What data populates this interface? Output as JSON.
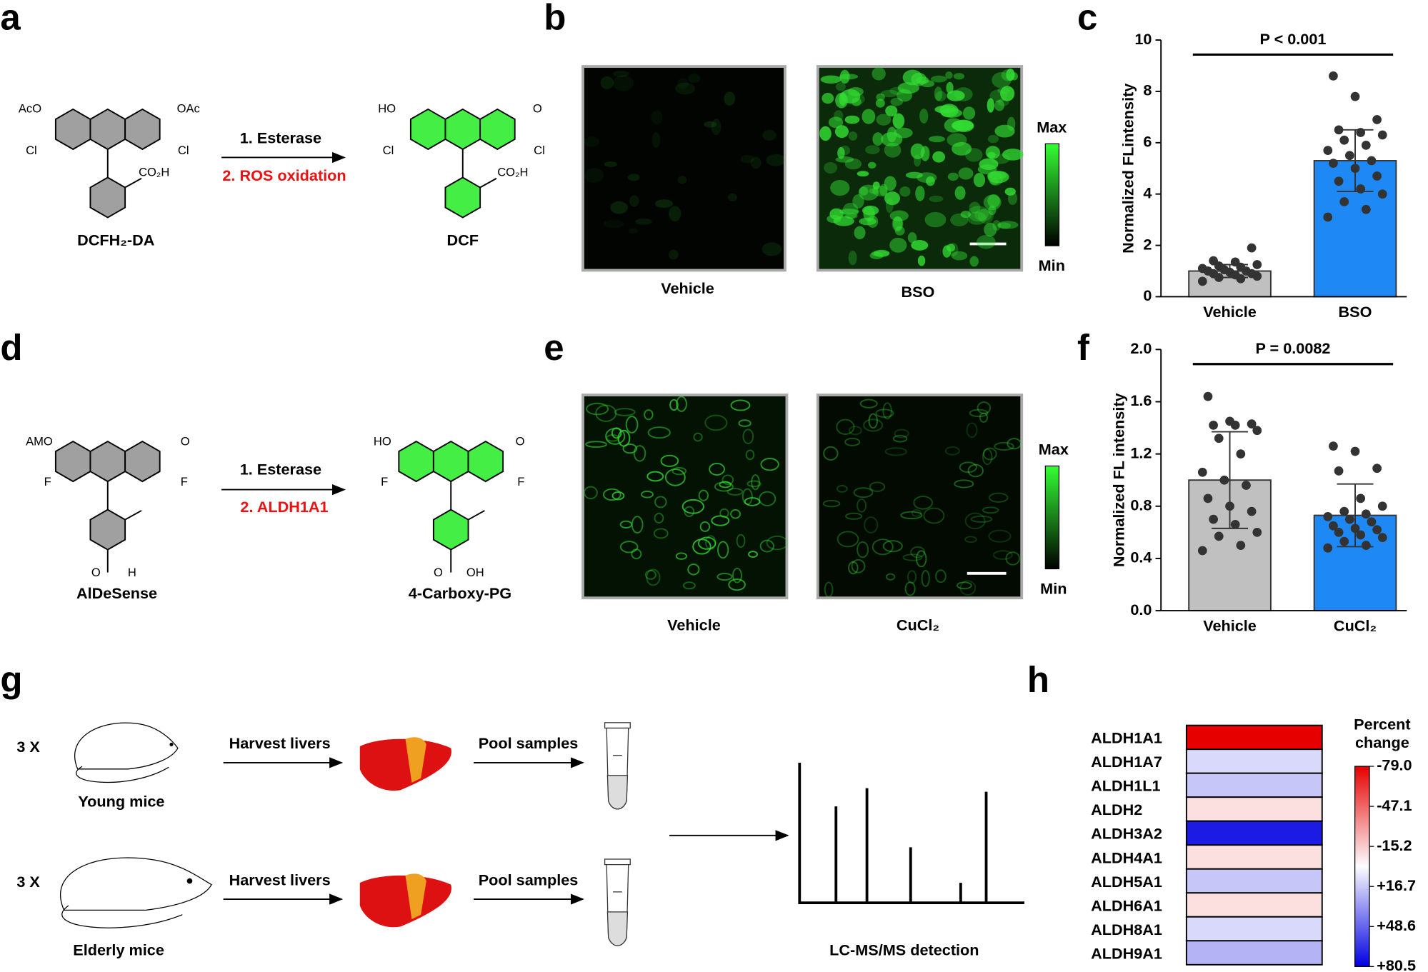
{
  "panel_labels": [
    "a",
    "b",
    "c",
    "d",
    "e",
    "f",
    "g",
    "h"
  ],
  "a": {
    "reactant": {
      "groups": [
        "AcO",
        "OAc",
        "Cl",
        "Cl",
        "CO₂H"
      ],
      "name": "DCFH₂-DA"
    },
    "steps": [
      "1. Esterase",
      "2. ROS oxidation"
    ],
    "product": {
      "groups": [
        "HO",
        "O",
        "Cl",
        "Cl",
        "CO₂H"
      ],
      "name": "DCF"
    }
  },
  "b": {
    "images": [
      "Vehicle",
      "BSO"
    ],
    "scale": [
      "Max",
      "Min"
    ]
  },
  "d": {
    "reactant": {
      "groups": [
        "AMO",
        "O",
        "F",
        "F",
        "O",
        "H"
      ],
      "name": "AlDeSense"
    },
    "steps": [
      "1. Esterase",
      "2. ALDH1A1"
    ],
    "product": {
      "groups": [
        "HO",
        "O",
        "F",
        "F",
        "O",
        "OH"
      ],
      "name": "4-Carboxy-PG"
    }
  },
  "e": {
    "images": [
      "Vehicle",
      "CuCl₂"
    ],
    "scale": [
      "Max",
      "Min"
    ]
  },
  "g": {
    "rows": [
      {
        "count": "3 X",
        "group": "Young mice"
      },
      {
        "count": "3 X",
        "group": "Elderly mice"
      }
    ],
    "steps": [
      "Harvest livers",
      "Pool samples"
    ],
    "detection": "LC-MS/MS detection"
  },
  "chart_data": [
    {
      "type": "bar",
      "title": "P < 0.001",
      "y_label": "Normalized FLintensity",
      "categories": [
        "Vehicle",
        "BSO"
      ],
      "values": [
        1.0,
        5.3
      ],
      "errors": [
        0.25,
        1.2
      ],
      "points": [
        [
          0.6,
          0.7,
          0.75,
          0.8,
          0.85,
          0.9,
          0.9,
          0.95,
          1.0,
          1.0,
          1.05,
          1.1,
          1.15,
          1.2,
          1.25,
          1.35,
          1.4,
          1.9
        ],
        [
          3.1,
          3.4,
          3.7,
          4.0,
          4.2,
          4.5,
          4.7,
          5.0,
          5.2,
          5.3,
          5.5,
          5.7,
          5.9,
          6.1,
          6.3,
          6.4,
          6.5,
          6.9,
          7.8,
          8.6
        ]
      ],
      "colors": [
        "#c0c0c0",
        "#1e88f5"
      ],
      "ylim": [
        0,
        10
      ],
      "yticks": [
        0,
        2,
        4,
        6,
        8,
        10
      ]
    },
    {
      "type": "bar",
      "title": "P = 0.0082",
      "y_label": "Normalized FL intensity",
      "categories": [
        "Vehicle",
        "CuCl₂"
      ],
      "values": [
        1.0,
        0.73
      ],
      "errors": [
        0.37,
        0.24
      ],
      "points": [
        [
          0.46,
          0.5,
          0.57,
          0.6,
          0.66,
          0.7,
          0.76,
          0.8,
          0.86,
          0.96,
          1.0,
          1.06,
          1.2,
          1.32,
          1.38,
          1.42,
          1.42,
          1.43,
          1.45,
          1.64
        ],
        [
          0.48,
          0.5,
          0.53,
          0.56,
          0.58,
          0.6,
          0.62,
          0.63,
          0.65,
          0.68,
          0.7,
          0.72,
          0.74,
          0.76,
          0.8,
          0.86,
          1.07,
          1.09,
          1.22,
          1.26
        ]
      ],
      "colors": [
        "#c0c0c0",
        "#1e88f5"
      ],
      "ylim": [
        0,
        2.0
      ],
      "yticks": [
        {
          "value": 0,
          "label": "0.0"
        },
        {
          "value": 0.4,
          "label": "0.4"
        },
        {
          "value": 0.8,
          "label": "0.8"
        },
        {
          "value": 1.2,
          "label": "1.2"
        },
        {
          "value": 1.6,
          "label": "1.6"
        },
        {
          "value": 2.0,
          "label": "2.0"
        }
      ]
    },
    {
      "type": "heatmap",
      "title": [
        "Percent",
        "change"
      ],
      "rows": [
        "ALDH1A1",
        "ALDH1A7",
        "ALDH1L1",
        "ALDH2",
        "ALDH3A2",
        "ALDH4A1",
        "ALDH5A1",
        "ALDH6A1",
        "ALDH8A1",
        "ALDH9A1"
      ],
      "values": [
        -79.0,
        12,
        18,
        -10,
        72,
        -10,
        18,
        -10,
        12,
        24
      ],
      "clim": [
        -79.0,
        80.5
      ],
      "cticks": [
        {
          "value": -79.0,
          "label": "-79.0"
        },
        {
          "value": -47.1,
          "label": "-47.1"
        },
        {
          "value": -15.2,
          "label": "-15.2"
        },
        {
          "value": 16.7,
          "label": "+16.7"
        },
        {
          "value": 48.6,
          "label": "+48.6"
        },
        {
          "value": 80.5,
          "label": "+80.5"
        }
      ]
    }
  ]
}
